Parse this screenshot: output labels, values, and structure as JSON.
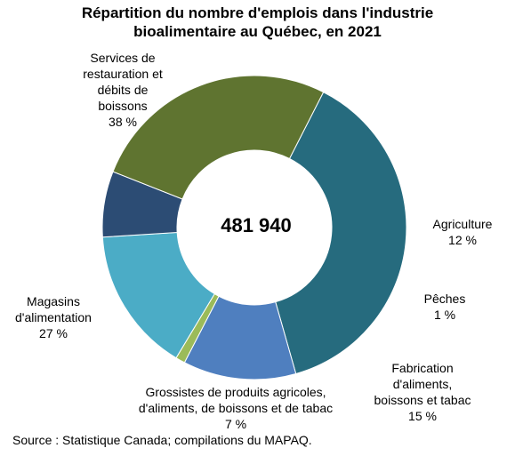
{
  "chart_data": {
    "type": "pie",
    "title_lines": [
      "Répartition du nombre d'emplois dans l'industrie",
      "bioalimentaire au Québec, en 2021"
    ],
    "total": "481 940",
    "slices": [
      {
        "label_lines": [
          "Services de",
          "restauration et",
          "débits de",
          "boissons"
        ],
        "pct_label": "38 %",
        "value": 38.1,
        "color": "#266B7E"
      },
      {
        "label_lines": [
          "Agriculture"
        ],
        "pct_label": "12 %",
        "value": 12.0,
        "color": "#4F7FBF"
      },
      {
        "label_lines": [
          "Pêches"
        ],
        "pct_label": "1 %",
        "value": 1.0,
        "color": "#9BBB59"
      },
      {
        "label_lines": [
          "Fabrication",
          "d'aliments,",
          "boissons et tabac"
        ],
        "pct_label": "15 %",
        "value": 15.4,
        "color": "#4BACC6"
      },
      {
        "label_lines": [
          "Grossistes de produits agricoles,",
          "d'aliments, de boissons et de tabac"
        ],
        "pct_label": "7 %",
        "value": 7.0,
        "color": "#2C4C74"
      },
      {
        "label_lines": [
          "Magasins",
          "d'alimentation"
        ],
        "pct_label": "27 %",
        "value": 26.5,
        "color": "#5F7430"
      }
    ],
    "source": "Source : Statistique Canada; compilations du MAPAQ."
  }
}
